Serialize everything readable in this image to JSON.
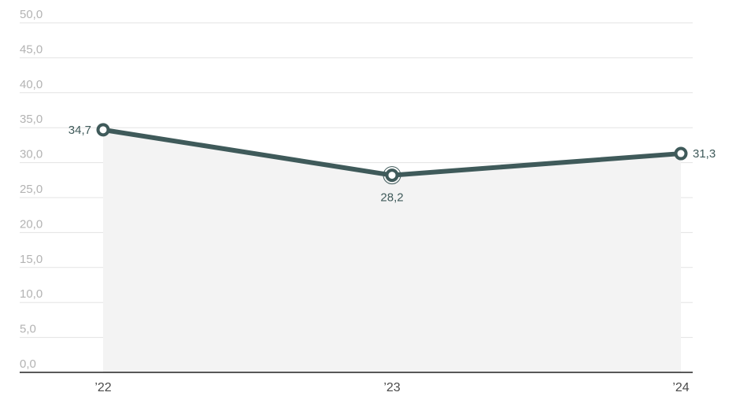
{
  "chart_data": {
    "type": "area",
    "categories": [
      "’22",
      "’23",
      "’24"
    ],
    "y_ticks": [
      "0,0",
      "5,0",
      "10,0",
      "15,0",
      "20,0",
      "25,0",
      "30,0",
      "35,0",
      "40,0",
      "45,0",
      "50,0"
    ],
    "ylim": [
      0,
      50
    ],
    "grid": true,
    "series": [
      {
        "values": [
          34.7,
          28.2,
          31.3
        ],
        "labels": [
          "34,7",
          "28,2",
          "31,3"
        ]
      }
    ],
    "colors": {
      "line": "#3f5a5a",
      "area": "#f3f3f3",
      "grid": "#e3e3e3",
      "axis": "#222222",
      "marker_fill": "#ffffff"
    }
  }
}
